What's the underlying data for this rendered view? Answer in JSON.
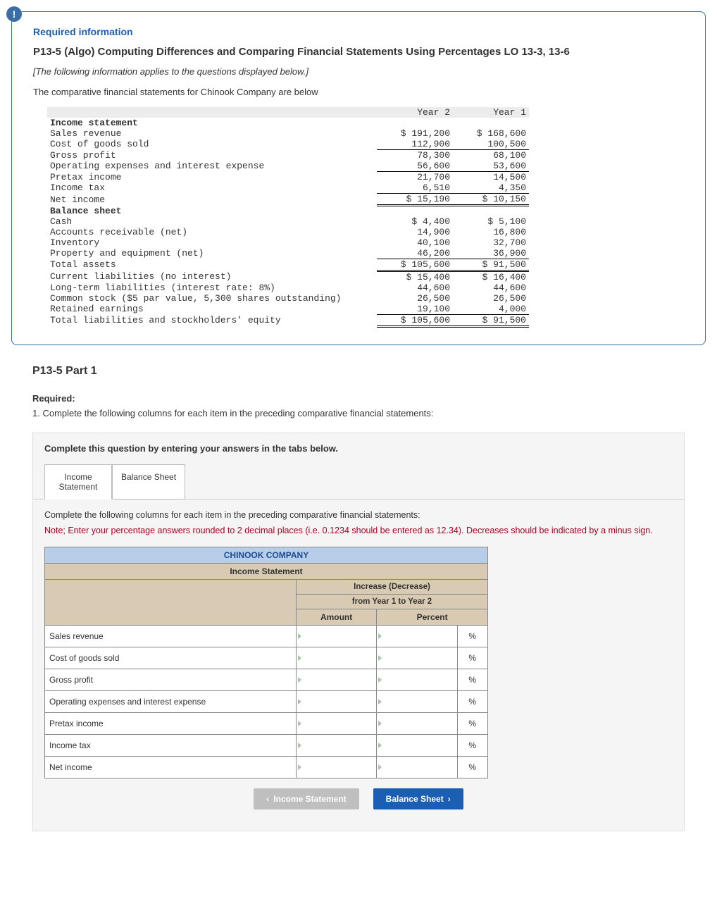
{
  "info": {
    "badge": "!",
    "heading": "Required information",
    "title": "P13-5 (Algo) Computing Differences and Comparing Financial Statements Using Percentages LO 13-3, 13-6",
    "italic_note": "[The following information applies to the questions displayed below.]",
    "desc": "The comparative financial statements for Chinook Company are below"
  },
  "fin": {
    "col_year2": "Year 2",
    "col_year1": "Year 1",
    "income_header": "Income statement",
    "rows_income": [
      {
        "label": "Sales revenue",
        "y2": "$ 191,200",
        "y1": "$ 168,600"
      },
      {
        "label": "Cost of goods sold",
        "y2": "112,900",
        "y1": "100,500",
        "ul": true
      },
      {
        "label": "Gross profit",
        "y2": "78,300",
        "y1": "68,100"
      },
      {
        "label": "Operating expenses and interest expense",
        "y2": "56,600",
        "y1": "53,600",
        "ul": true
      },
      {
        "label": "Pretax income",
        "y2": "21,700",
        "y1": "14,500"
      },
      {
        "label": "Income tax",
        "y2": "6,510",
        "y1": "4,350",
        "ul": true
      },
      {
        "label": "Net income",
        "y2": "$ 15,190",
        "y1": "$ 10,150",
        "dbl": true
      }
    ],
    "balance_header": "Balance sheet",
    "rows_balance": [
      {
        "label": "Cash",
        "y2": "$ 4,400",
        "y1": "$ 5,100"
      },
      {
        "label": "Accounts receivable (net)",
        "y2": "14,900",
        "y1": "16,800"
      },
      {
        "label": "Inventory",
        "y2": "40,100",
        "y1": "32,700"
      },
      {
        "label": "Property and equipment (net)",
        "y2": "46,200",
        "y1": "36,900",
        "ul": true
      },
      {
        "label": "Total assets",
        "y2": "$ 105,600",
        "y1": "$ 91,500",
        "dbl": true
      },
      {
        "label": "Current liabilities (no interest)",
        "y2": "$ 15,400",
        "y1": "$ 16,400"
      },
      {
        "label": "Long-term liabilities (interest rate: 8%)",
        "y2": "44,600",
        "y1": "44,600"
      },
      {
        "label": "Common stock ($5 par value, 5,300 shares outstanding)",
        "y2": "26,500",
        "y1": "26,500"
      },
      {
        "label": "Retained earnings",
        "y2": "19,100",
        "y1": "4,000",
        "ul": true
      },
      {
        "label": "Total liabilities and stockholders' equity",
        "y2": "$ 105,600",
        "y1": "$ 91,500",
        "dbl": true
      }
    ]
  },
  "part": {
    "title": "P13-5 Part 1",
    "required_label": "Required:",
    "required_text": "1. Complete the following columns for each item in the preceding comparative financial statements:"
  },
  "answer": {
    "instruction": "Complete this question by entering your answers in the tabs below.",
    "tab1": "Income\nStatement",
    "tab2": "Balance Sheet",
    "note": "Complete the following columns for each item in the preceding comparative financial statements:",
    "red_note": "Note; Enter your percentage answers rounded to 2 decimal places (i.e. 0.1234 should be entered as 12.34). Decreases should be indicated by a minus sign.",
    "company": "CHINOOK COMPANY",
    "statement": "Income Statement",
    "incdec1": "Increase (Decrease)",
    "incdec2": "from Year 1 to Year 2",
    "col_amount": "Amount",
    "col_percent": "Percent",
    "pct": "%",
    "rows": [
      "Sales revenue",
      "Cost of goods sold",
      "Gross profit",
      "Operating expenses and interest expense",
      "Pretax income",
      "Income tax",
      "Net income"
    ],
    "nav_prev": "Income Statement",
    "nav_next": "Balance Sheet"
  }
}
